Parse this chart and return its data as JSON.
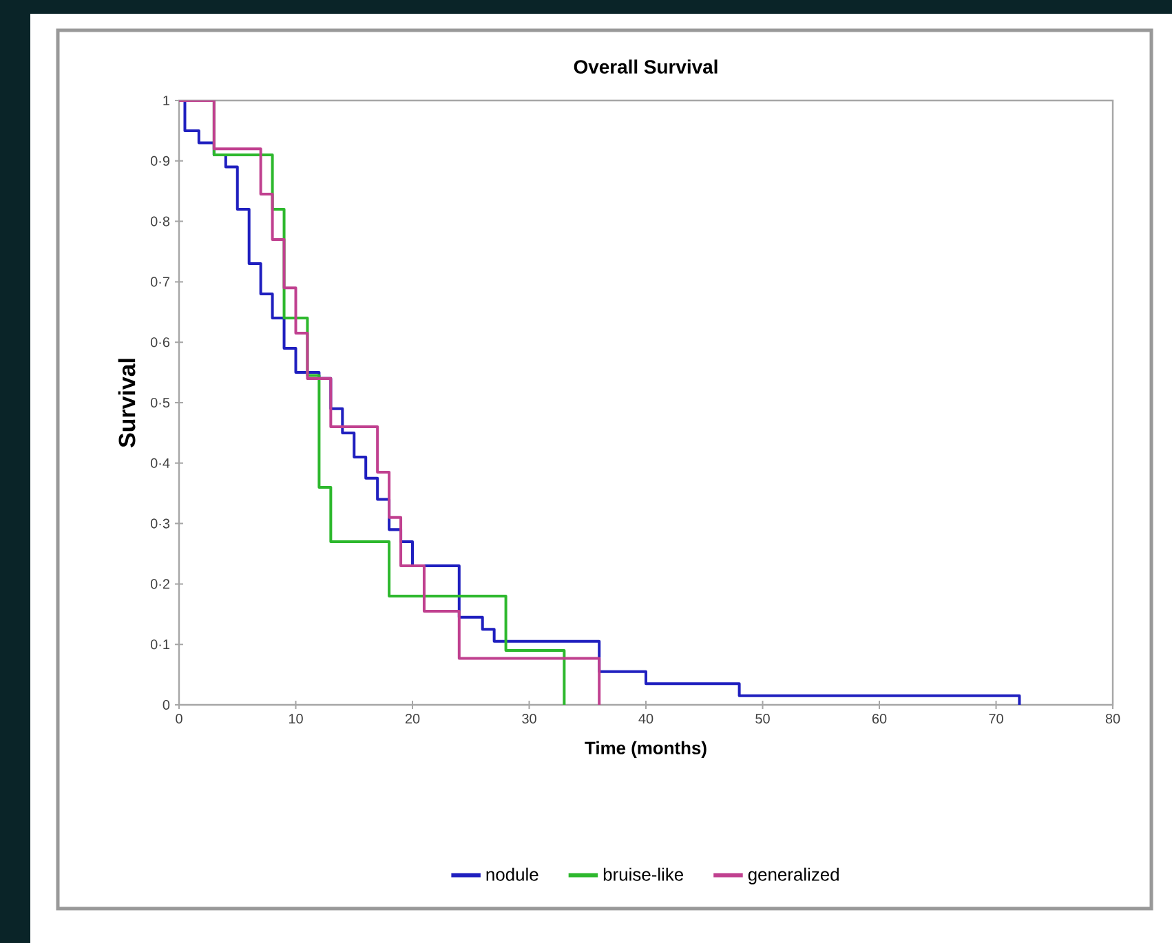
{
  "chart_data": {
    "type": "step",
    "title": "Overall Survival",
    "xlabel": "Time (months)",
    "ylabel": "Survival",
    "xlim": [
      0,
      80
    ],
    "ylim": [
      0,
      1
    ],
    "xticks": [
      0,
      10,
      20,
      30,
      40,
      50,
      60,
      70,
      80
    ],
    "yticks": [
      0,
      {
        "value": 0.1,
        "label": "0·1"
      },
      {
        "value": 0.2,
        "label": "0·2"
      },
      {
        "value": 0.3,
        "label": "0·3"
      },
      {
        "value": 0.4,
        "label": "0·4"
      },
      {
        "value": 0.5,
        "label": "0·5"
      },
      {
        "value": 0.6,
        "label": "0·6"
      },
      {
        "value": 0.7,
        "label": "0·7"
      },
      {
        "value": 0.8,
        "label": "0·8"
      },
      {
        "value": 0.9,
        "label": "0·9"
      },
      1
    ],
    "legend": "bottom",
    "grid": false,
    "marker": "none",
    "line_style": "solid",
    "series": [
      {
        "name": "nodule",
        "color": "#1f1fbf",
        "x": [
          0,
          0.5,
          1.7,
          3,
          4,
          5,
          6,
          7,
          8,
          9,
          10,
          12,
          13,
          14,
          15,
          16,
          17,
          18,
          19,
          20,
          24,
          26,
          27,
          36,
          40,
          48,
          72
        ],
        "values": [
          1,
          0.95,
          0.93,
          0.91,
          0.89,
          0.82,
          0.73,
          0.68,
          0.64,
          0.59,
          0.55,
          0.54,
          0.49,
          0.45,
          0.41,
          0.375,
          0.34,
          0.29,
          0.27,
          0.23,
          0.145,
          0.125,
          0.105,
          0.055,
          0.035,
          0.015,
          0
        ]
      },
      {
        "name": "bruise-like",
        "color": "#2db82d",
        "x": [
          0,
          3,
          8,
          9,
          11,
          12,
          13,
          18,
          28,
          33
        ],
        "values": [
          1,
          0.91,
          0.82,
          0.64,
          0.545,
          0.36,
          0.27,
          0.18,
          0.09,
          0
        ]
      },
      {
        "name": "generalized",
        "color": "#c0408f",
        "x": [
          0,
          3,
          7,
          8,
          9,
          10,
          11,
          13,
          17,
          18,
          19,
          21,
          24,
          36
        ],
        "values": [
          1,
          0.92,
          0.845,
          0.77,
          0.69,
          0.615,
          0.54,
          0.46,
          0.385,
          0.31,
          0.23,
          0.155,
          0.077,
          0
        ]
      }
    ]
  }
}
